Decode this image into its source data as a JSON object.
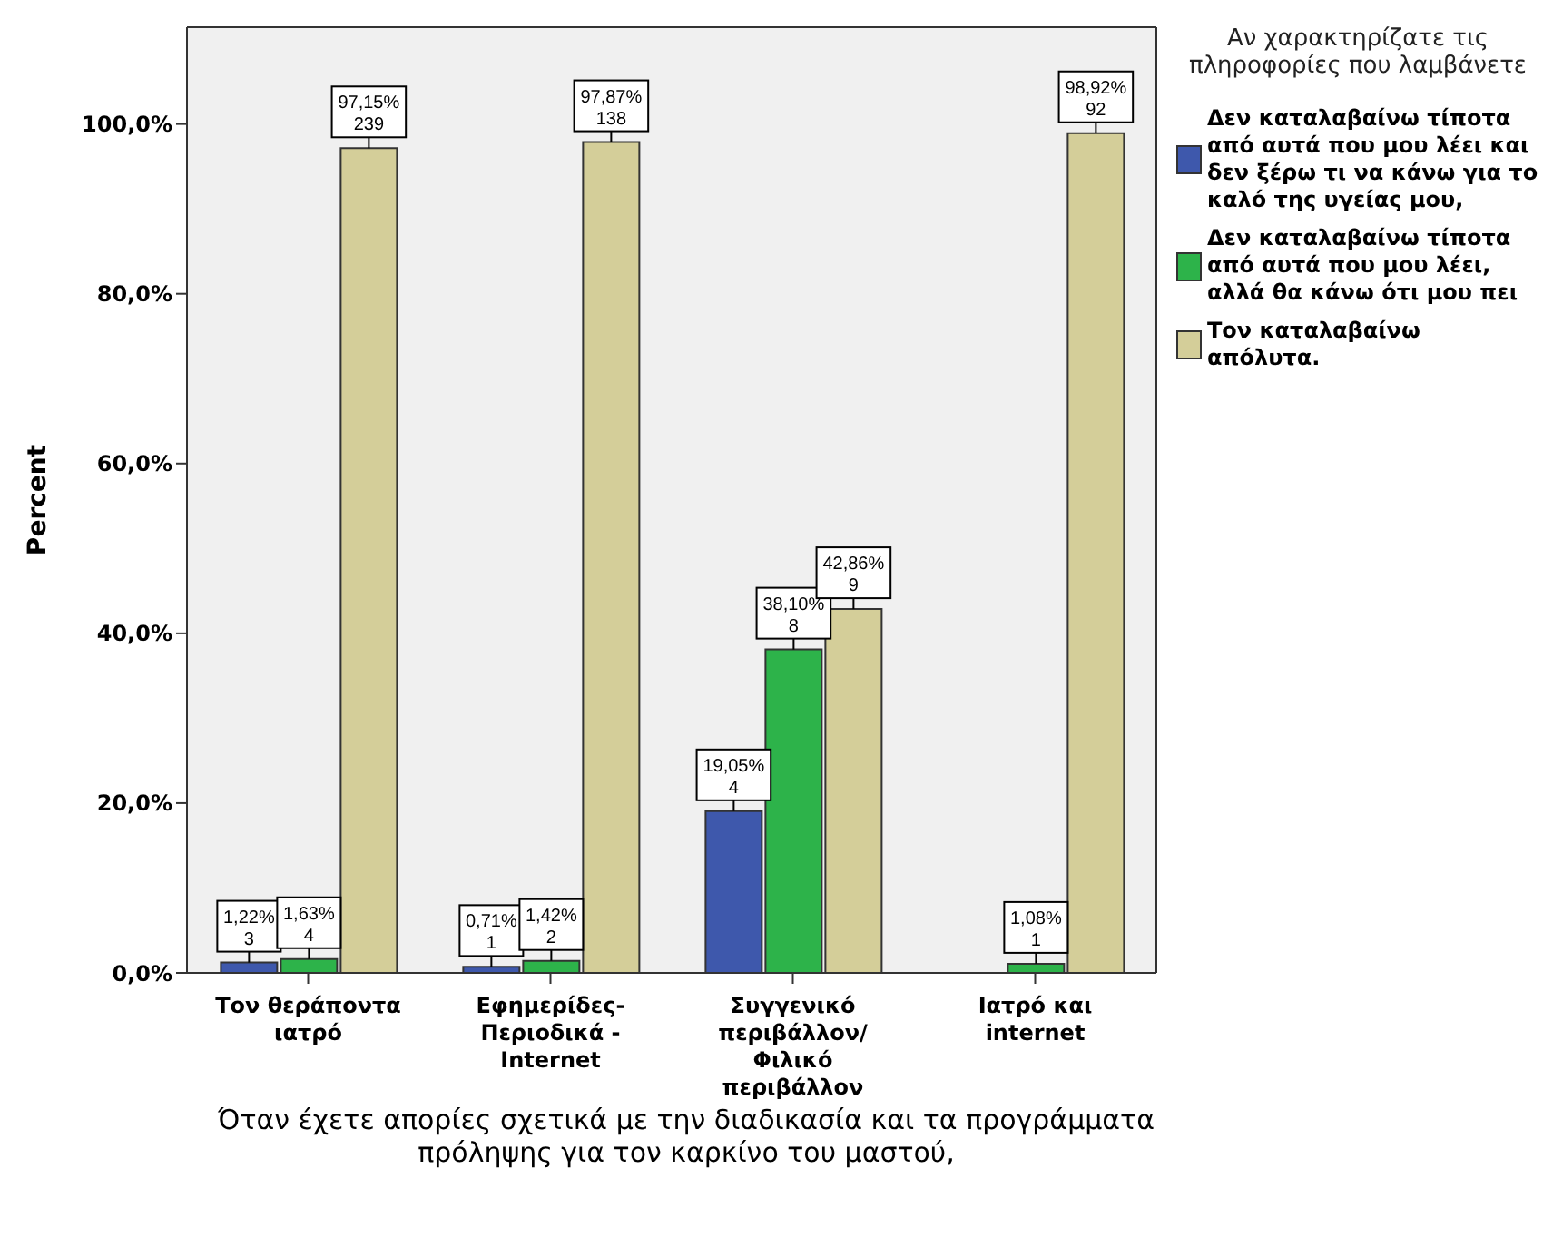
{
  "chart_data": {
    "type": "bar",
    "xlabel": "Όταν έχετε απορίες σχετικά με την διαδικασία και τα προγράμματα πρόληψης για τον καρκίνο του μαστού,",
    "ylabel": "Percent",
    "legend_title": "Αν χαρακτηρίζατε τις πληροφορίες που λαμβάνετε",
    "categories": [
      "Τον θεράποντα ιατρό",
      "Εφημερίδες-Περιοδικά - Internet",
      "Συγγενικό περιβάλλον/ Φιλικό περιβάλλον",
      "Ιατρό και internet"
    ],
    "series": [
      {
        "name": "Δεν καταλαβαίνω τίποτα από αυτά που μου λέει και δεν ξέρω τι να κάνω για το καλό της υγείας μου,",
        "color": "#3e58ac",
        "values": [
          1.22,
          0.71,
          19.05,
          null
        ],
        "value_labels": [
          "1,22%\n3",
          "0,71%\n1",
          "19,05%\n4",
          null
        ]
      },
      {
        "name": "Δεν καταλαβαίνω τίποτα από αυτά που μου λέει, αλλά θα κάνω ότι μου πει",
        "color": "#2db34a",
        "values": [
          1.63,
          1.42,
          38.1,
          1.08
        ],
        "value_labels": [
          "1,63%\n4",
          "1,42%\n2",
          "38,10%\n8",
          "1,08%\n1"
        ]
      },
      {
        "name": "Τον καταλαβαίνω απόλυτα.",
        "color": "#d4ce99",
        "values": [
          97.15,
          97.87,
          42.86,
          98.92
        ],
        "value_labels": [
          "97,15%\n239",
          "97,87%\n138",
          "42,86%\n9",
          "98,92%\n92"
        ]
      }
    ],
    "ylim": [
      0,
      111.4
    ],
    "yticks": [
      {
        "value": 0,
        "label": "0,0%"
      },
      {
        "value": 20,
        "label": "20,0%"
      },
      {
        "value": 40,
        "label": "40,0%"
      },
      {
        "value": 60,
        "label": "60,0%"
      },
      {
        "value": 80,
        "label": "80,0%"
      },
      {
        "value": 100,
        "label": "100,0%"
      }
    ],
    "grid": false,
    "legend": "right"
  }
}
